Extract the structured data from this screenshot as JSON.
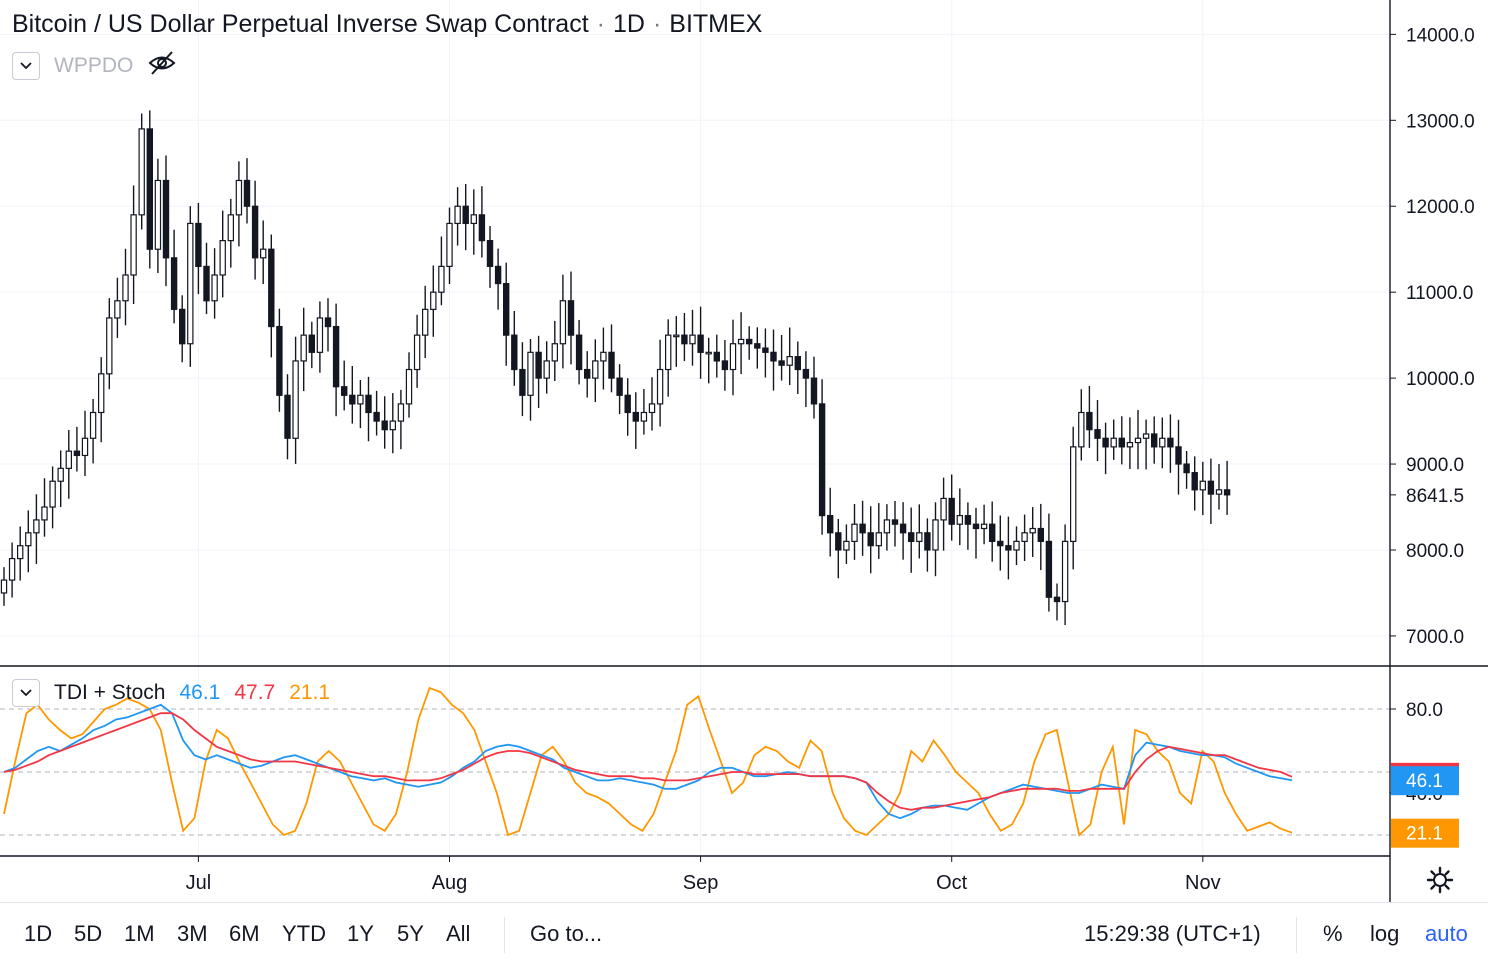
{
  "header": {
    "symbol": "Bitcoin / US Dollar Perpetual Inverse Swap Contract",
    "interval": "1D",
    "exchange": "BITMEX",
    "separator": "·"
  },
  "overlay_indicator": {
    "name": "WPPDO",
    "visible": false
  },
  "indicator_pane": {
    "name": "TDI + Stoch",
    "values": [
      {
        "value": "46.1",
        "color": "#2196f3"
      },
      {
        "value": "47.7",
        "color": "#f23645"
      },
      {
        "value": "21.1",
        "color": "#ff9800"
      }
    ]
  },
  "price_axis": {
    "ticks": [
      "14000.0",
      "13000.0",
      "12000.0",
      "11000.0",
      "10000.0",
      "9000.0",
      "8000.0",
      "7000.0"
    ],
    "last_price": "8641.5"
  },
  "indicator_axis": {
    "ticks": [
      "80.0",
      "40.0"
    ],
    "badges": [
      {
        "label": "47.7",
        "color": "#f23645"
      },
      {
        "label": "46.1",
        "color": "#2196f3"
      },
      {
        "label": "21.1",
        "color": "#ff9800"
      }
    ]
  },
  "time_axis": {
    "labels": [
      "Jul",
      "Aug",
      "Sep",
      "Oct",
      "Nov"
    ]
  },
  "colors": {
    "up": "#ffffff",
    "down": "#131722",
    "grid": "#f0f3fa",
    "tdi_blue": "#2196f3",
    "tdi_red": "#f23645",
    "stoch_orange": "#ff9800"
  },
  "toolbar": {
    "ranges": [
      "1D",
      "5D",
      "1M",
      "3M",
      "6M",
      "YTD",
      "1Y",
      "5Y",
      "All"
    ],
    "goto": "Go to...",
    "clock": "15:29:38 (UTC+1)",
    "percent": "%",
    "log": "log",
    "auto": "auto"
  },
  "chart_data": {
    "type": "candlestick",
    "price_ylim": [
      6650,
      14400
    ],
    "indicator_ylim": [
      10,
      100
    ],
    "indicator_levels": [
      80,
      50,
      20
    ],
    "anchor_labels": {
      "Jul": 24,
      "Aug": 55,
      "Sep": 86,
      "Oct": 117,
      "Nov": 148
    },
    "price_close": [
      7650,
      7900,
      8050,
      8200,
      8350,
      8500,
      8800,
      8950,
      9150,
      9100,
      9300,
      9600,
      10050,
      10700,
      10900,
      11200,
      11900,
      12900,
      11500,
      12300,
      11400,
      10800,
      10400,
      11800,
      11300,
      10900,
      11200,
      11600,
      11900,
      12300,
      12000,
      11400,
      11500,
      10600,
      9800,
      9300,
      10200,
      10500,
      10300,
      10700,
      10600,
      9900,
      9800,
      9700,
      9800,
      9600,
      9500,
      9400,
      9500,
      9700,
      10100,
      10500,
      10800,
      11000,
      11300,
      11800,
      12000,
      11800,
      11900,
      11600,
      11300,
      11100,
      10500,
      10100,
      9800,
      10300,
      10000,
      10200,
      10400,
      10900,
      10500,
      10100,
      10000,
      10200,
      10300,
      10000,
      9800,
      9600,
      9500,
      9600,
      9700,
      10100,
      10500,
      10500,
      10400,
      10500,
      10300,
      10300,
      10200,
      10100,
      10400,
      10450,
      10400,
      10350,
      10300,
      10200,
      10150,
      10250,
      10100,
      10000,
      9700,
      8400,
      8200,
      8000,
      8100,
      8300,
      8200,
      8050,
      8200,
      8350,
      8300,
      8200,
      8100,
      8200,
      8000,
      8350,
      8600,
      8300,
      8400,
      8300,
      8250,
      8300,
      8100,
      8050,
      8000,
      8100,
      8200,
      8250,
      8100,
      7450,
      7400,
      8100,
      9200,
      9600,
      9400,
      9300,
      9200,
      9300,
      9200,
      9250,
      9300,
      9350,
      9200,
      9300,
      9200,
      9000,
      8900,
      8700,
      8800,
      8650,
      8700,
      8641.5
    ],
    "indicator_blue": [
      50,
      52,
      56,
      60,
      62,
      60,
      63,
      66,
      70,
      72,
      75,
      76,
      78,
      80,
      82,
      78,
      65,
      58,
      56,
      58,
      56,
      54,
      52,
      53,
      55,
      57,
      58,
      56,
      54,
      52,
      50,
      48,
      47,
      46,
      47,
      45,
      44,
      43,
      44,
      45,
      48,
      52,
      55,
      60,
      62,
      63,
      62,
      60,
      58,
      56,
      52,
      50,
      48,
      46,
      46,
      47,
      46,
      45,
      44,
      42,
      42,
      44,
      46,
      50,
      52,
      52,
      50,
      48,
      48,
      49,
      50,
      49,
      48,
      48,
      48,
      48,
      47,
      45,
      36,
      30,
      28,
      30,
      33,
      34,
      34,
      33,
      32,
      35,
      38,
      40,
      42,
      44,
      43,
      42,
      41,
      40,
      40,
      42,
      44,
      43,
      42,
      58,
      64,
      63,
      62,
      60,
      59,
      58,
      58,
      57,
      54,
      52,
      50,
      48,
      47,
      46.1
    ],
    "indicator_red": [
      50,
      51,
      53,
      55,
      58,
      60,
      62,
      64,
      66,
      68,
      70,
      72,
      74,
      76,
      78,
      78,
      75,
      70,
      66,
      62,
      60,
      58,
      56,
      55,
      55,
      55,
      55,
      54,
      53,
      52,
      51,
      50,
      49,
      48,
      48,
      47,
      46,
      46,
      46,
      47,
      49,
      51,
      54,
      57,
      59,
      60,
      60,
      59,
      57,
      55,
      53,
      51,
      50,
      49,
      48,
      48,
      48,
      47,
      47,
      46,
      46,
      46,
      47,
      48,
      49,
      50,
      50,
      49,
      49,
      49,
      49,
      49,
      48,
      48,
      48,
      48,
      47,
      45,
      40,
      36,
      33,
      32,
      33,
      33,
      34,
      35,
      36,
      37,
      38,
      40,
      41,
      42,
      42,
      42,
      42,
      41,
      41,
      42,
      42,
      42,
      42,
      50,
      56,
      60,
      62,
      61,
      60,
      59,
      58,
      58,
      56,
      54,
      52,
      51,
      50,
      47.7
    ],
    "stoch_orange": [
      30,
      55,
      78,
      82,
      75,
      70,
      66,
      68,
      74,
      80,
      82,
      85,
      83,
      80,
      70,
      45,
      22,
      28,
      55,
      70,
      66,
      55,
      45,
      35,
      25,
      20,
      22,
      35,
      55,
      60,
      55,
      45,
      35,
      25,
      22,
      30,
      50,
      75,
      90,
      88,
      82,
      78,
      70,
      55,
      40,
      20,
      22,
      40,
      58,
      62,
      55,
      45,
      40,
      38,
      35,
      30,
      25,
      22,
      30,
      45,
      60,
      82,
      86,
      70,
      55,
      40,
      45,
      58,
      62,
      60,
      55,
      52,
      65,
      60,
      40,
      28,
      22,
      20,
      25,
      30,
      40,
      60,
      55,
      65,
      58,
      50,
      45,
      40,
      30,
      22,
      25,
      35,
      55,
      68,
      70,
      45,
      20,
      25,
      50,
      62,
      25,
      70,
      68,
      60,
      55,
      40,
      35,
      60,
      55,
      40,
      30,
      22,
      24,
      26,
      23,
      21.1
    ]
  }
}
